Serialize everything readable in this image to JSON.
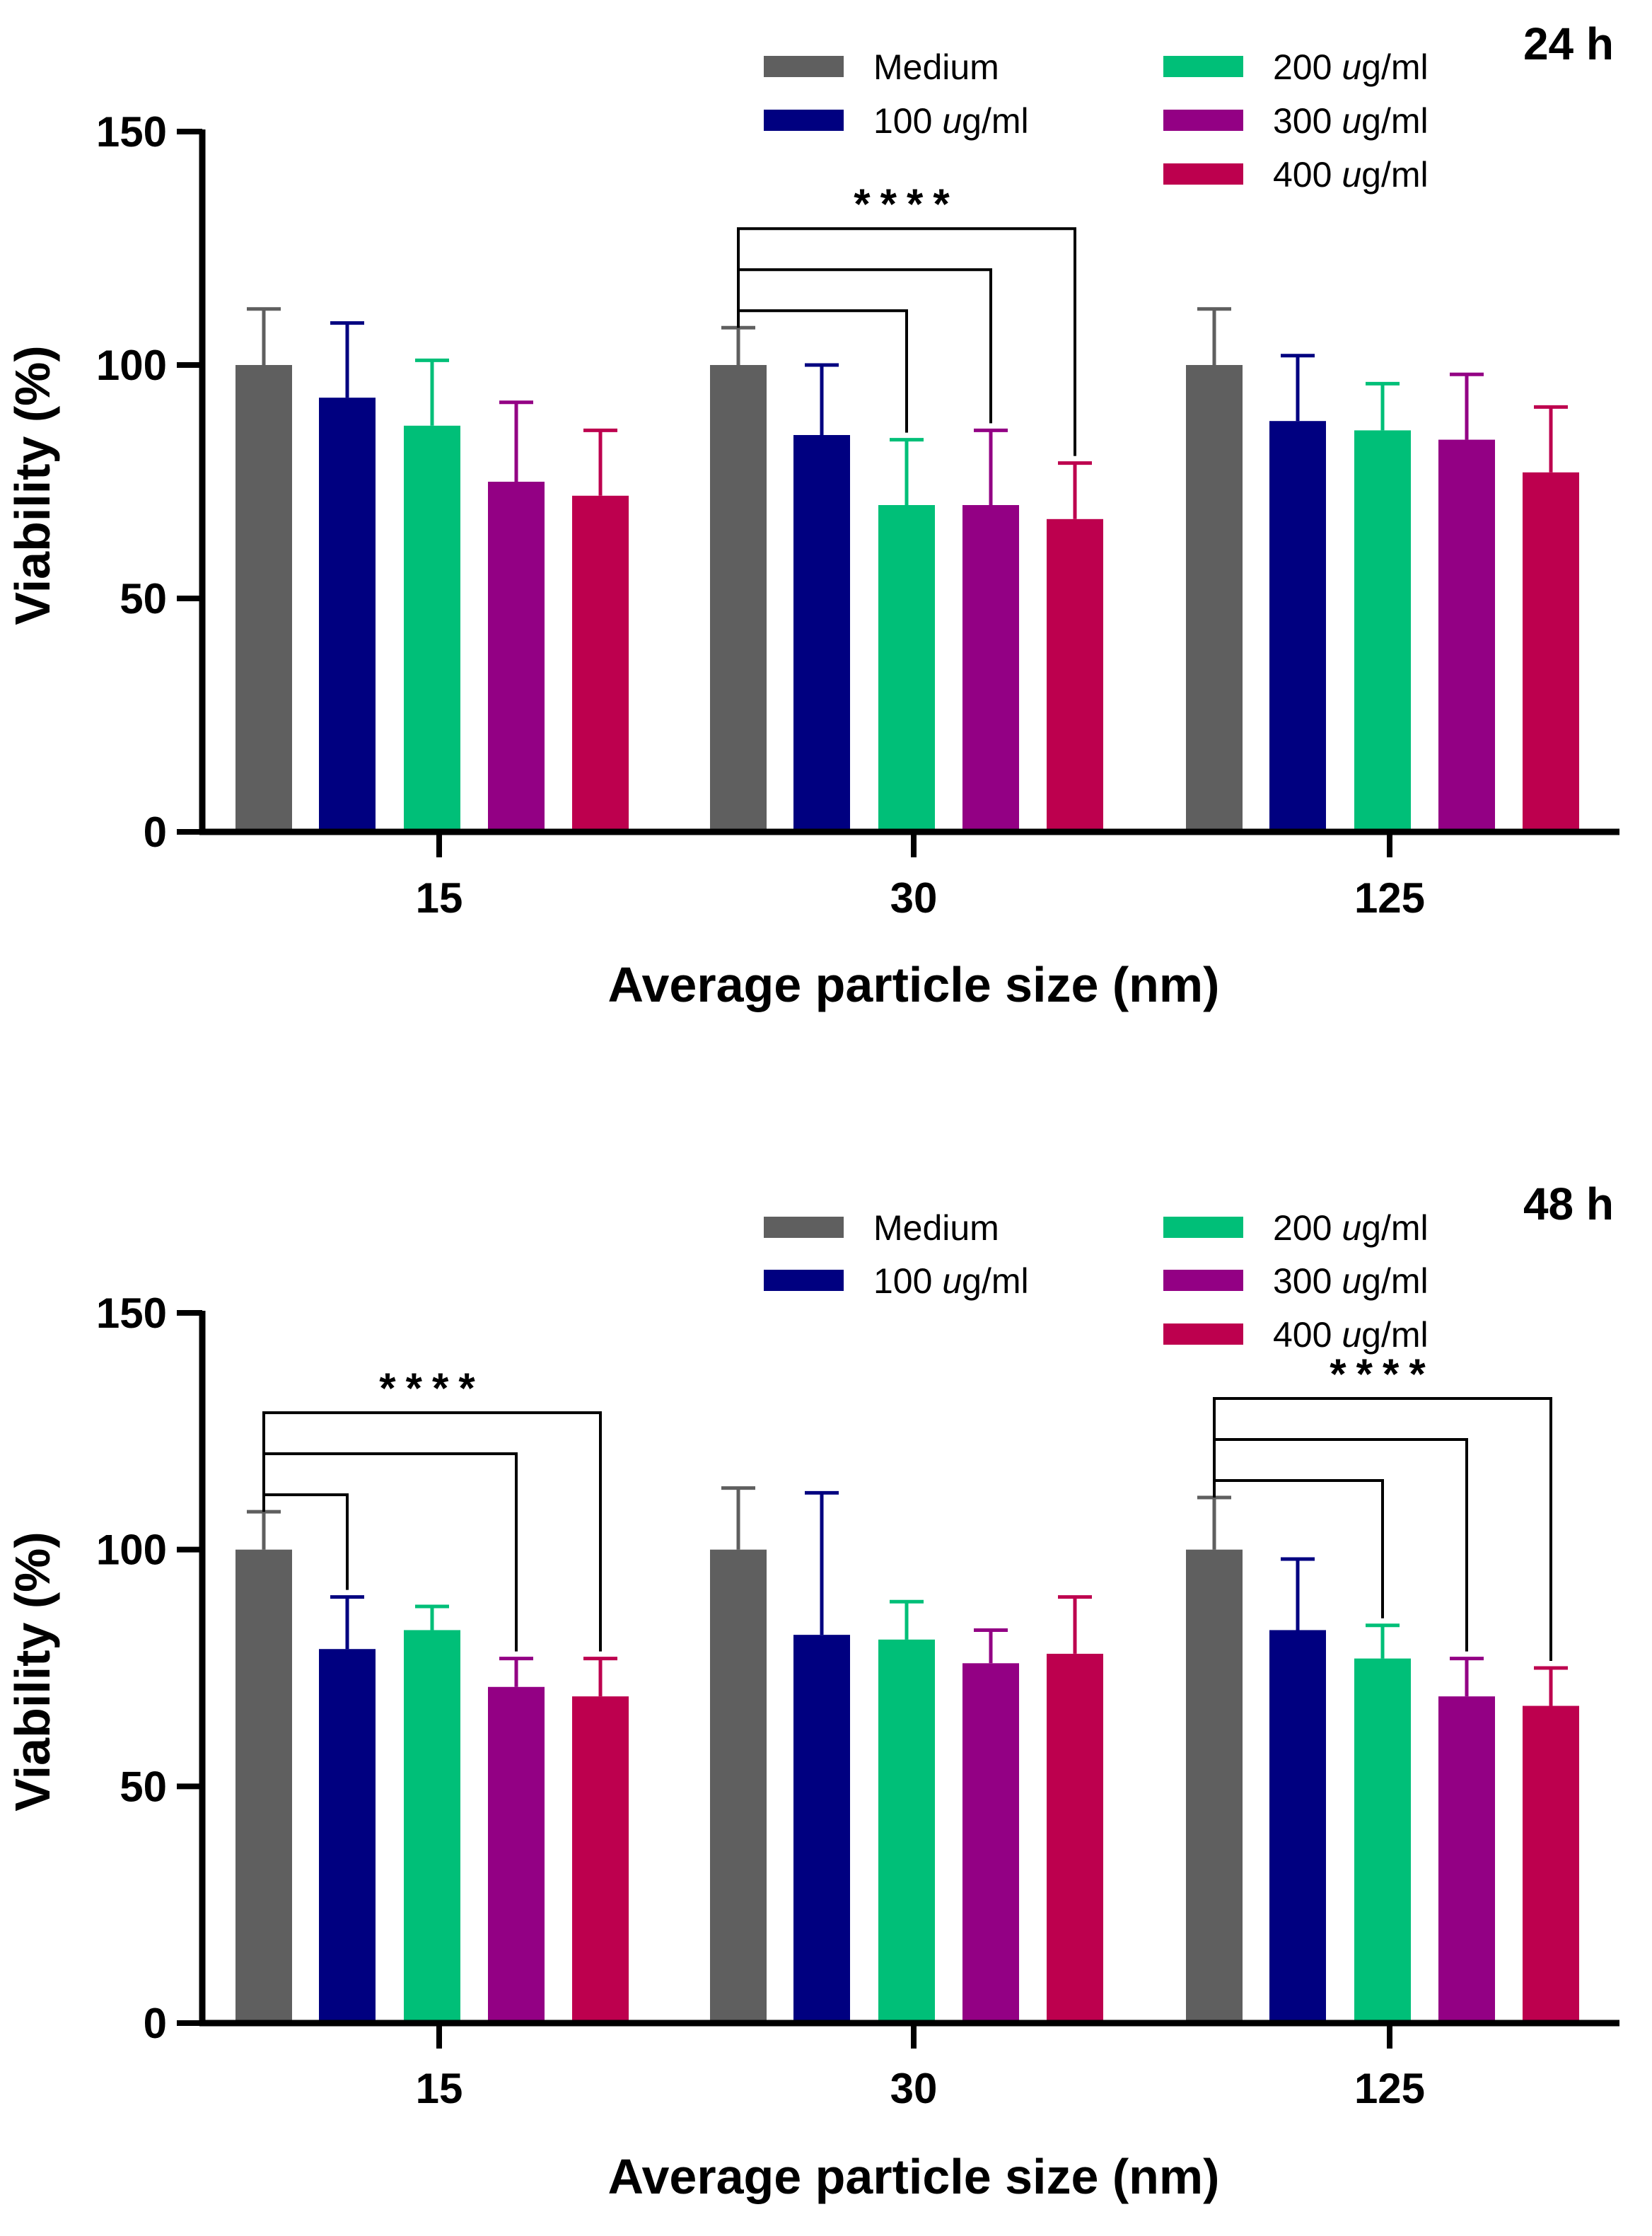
{
  "chart_data": [
    {
      "type": "bar",
      "panel_label": "24 h",
      "xlabel": "Average particle size (nm)",
      "ylabel": "Viability (%)",
      "ylim": [
        0,
        150
      ],
      "yticks": [
        "0",
        "50",
        "100",
        "150"
      ],
      "categories": [
        "15",
        "30",
        "125"
      ],
      "series": [
        {
          "name": "Medium",
          "color": "#5f5f5f",
          "values": [
            100,
            100,
            100
          ],
          "errors": [
            12,
            8,
            12
          ]
        },
        {
          "name": "100 ug/ml",
          "color": "#000080",
          "values": [
            93,
            85,
            88
          ],
          "errors": [
            16,
            15,
            14
          ]
        },
        {
          "name": "200 ug/ml",
          "color": "#00bf78",
          "values": [
            87,
            70,
            86
          ],
          "errors": [
            14,
            14,
            10
          ]
        },
        {
          "name": "300 ug/ml",
          "color": "#930084",
          "values": [
            75,
            70,
            84
          ],
          "errors": [
            17,
            16,
            14
          ]
        },
        {
          "name": "400 ug/ml",
          "color": "#bd004e",
          "values": [
            72,
            67,
            77
          ],
          "errors": [
            14,
            12,
            14
          ]
        }
      ],
      "significance": [
        {
          "label": "****",
          "category": "30",
          "from_series": "Medium",
          "to_series": [
            "200 ug/ml",
            "300 ug/ml",
            "400 ug/ml"
          ]
        }
      ],
      "legend": [
        {
          "prefix": "Medium",
          "italic": "",
          "suffix": "",
          "color": "#5f5f5f"
        },
        {
          "prefix": "100 ",
          "italic": "u",
          "suffix": "g/ml",
          "color": "#000080"
        },
        {
          "prefix": "200 ",
          "italic": "u",
          "suffix": "g/ml",
          "color": "#00bf78"
        },
        {
          "prefix": "300 ",
          "italic": "u",
          "suffix": "g/ml",
          "color": "#930084"
        },
        {
          "prefix": "400 ",
          "italic": "u",
          "suffix": "g/ml",
          "color": "#bd004e"
        }
      ]
    },
    {
      "type": "bar",
      "panel_label": "48 h",
      "xlabel": "Average particle size (nm)",
      "ylabel": "Viability (%)",
      "ylim": [
        0,
        150
      ],
      "yticks": [
        "0",
        "50",
        "100",
        "150"
      ],
      "categories": [
        "15",
        "30",
        "125"
      ],
      "series": [
        {
          "name": "Medium",
          "color": "#5f5f5f",
          "values": [
            100,
            100,
            100
          ],
          "errors": [
            8,
            13,
            11
          ]
        },
        {
          "name": "100 ug/ml",
          "color": "#000080",
          "values": [
            79,
            82,
            83
          ],
          "errors": [
            11,
            30,
            15
          ]
        },
        {
          "name": "200 ug/ml",
          "color": "#00bf78",
          "values": [
            83,
            81,
            77
          ],
          "errors": [
            5,
            8,
            7
          ]
        },
        {
          "name": "300 ug/ml",
          "color": "#930084",
          "values": [
            71,
            76,
            69
          ],
          "errors": [
            6,
            7,
            8
          ]
        },
        {
          "name": "400 ug/ml",
          "color": "#bd004e",
          "values": [
            69,
            78,
            67
          ],
          "errors": [
            8,
            12,
            8
          ]
        }
      ],
      "significance": [
        {
          "label": "****",
          "category": "15",
          "from_series": "Medium",
          "to_series": [
            "100 ug/ml",
            "300 ug/ml",
            "400 ug/ml"
          ]
        },
        {
          "label": "****",
          "category": "125",
          "from_series": "Medium",
          "to_series": [
            "200 ug/ml",
            "300 ug/ml",
            "400 ug/ml"
          ]
        }
      ],
      "legend": [
        {
          "prefix": "Medium",
          "italic": "",
          "suffix": "",
          "color": "#5f5f5f"
        },
        {
          "prefix": "100 ",
          "italic": "u",
          "suffix": "g/ml",
          "color": "#000080"
        },
        {
          "prefix": "200 ",
          "italic": "u",
          "suffix": "g/ml",
          "color": "#00bf78"
        },
        {
          "prefix": "300 ",
          "italic": "u",
          "suffix": "g/ml",
          "color": "#930084"
        },
        {
          "prefix": "400 ",
          "italic": "u",
          "suffix": "g/ml",
          "color": "#bd004e"
        }
      ]
    }
  ]
}
